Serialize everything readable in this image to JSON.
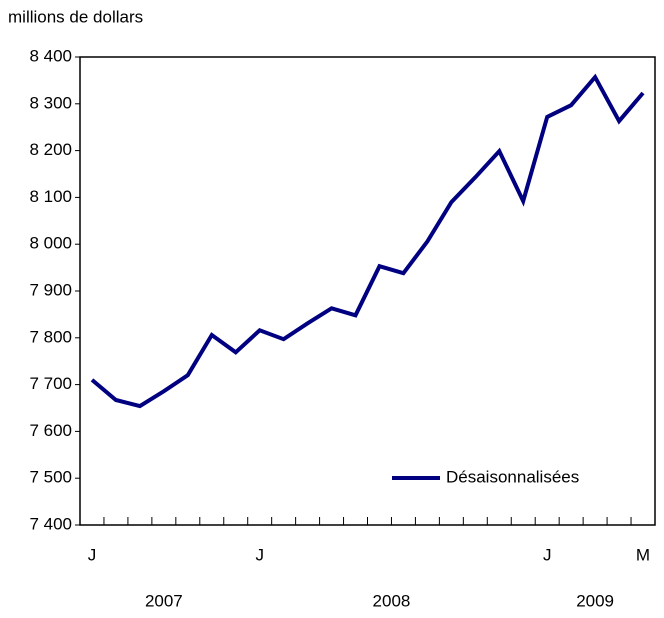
{
  "chart_data": {
    "type": "line",
    "y_axis_label": "millions de dollars",
    "categories": [
      "J",
      null,
      null,
      null,
      null,
      null,
      null,
      "J",
      null,
      null,
      null,
      null,
      null,
      null,
      null,
      null,
      null,
      null,
      null,
      "J",
      null,
      null,
      null,
      "M"
    ],
    "years": [
      "2007",
      "2008",
      "2009"
    ],
    "series": [
      {
        "name": "Désaisonnalisées",
        "color": "#000080",
        "values": [
          7710,
          7667,
          7654,
          7686,
          7720,
          7806,
          7769,
          7816,
          7797,
          7831,
          7863,
          7848,
          7953,
          7938,
          8006,
          8090,
          8143,
          8199,
          8092,
          8272,
          8297,
          8357,
          8263,
          8323
        ]
      }
    ],
    "ylim": [
      7400,
      8400
    ],
    "yticks": [
      {
        "value": 7400,
        "label": "7 400"
      },
      {
        "value": 7500,
        "label": "7 500"
      },
      {
        "value": 7600,
        "label": "7 600"
      },
      {
        "value": 7700,
        "label": "7 700"
      },
      {
        "value": 7800,
        "label": "7 800"
      },
      {
        "value": 7900,
        "label": "7 900"
      },
      {
        "value": 8000,
        "label": "8 000"
      },
      {
        "value": 8100,
        "label": "8 100"
      },
      {
        "value": 8200,
        "label": "8 200"
      },
      {
        "value": 8300,
        "label": "8 300"
      },
      {
        "value": 8400,
        "label": "8 400"
      }
    ],
    "grid": false,
    "legend": "lower right"
  }
}
